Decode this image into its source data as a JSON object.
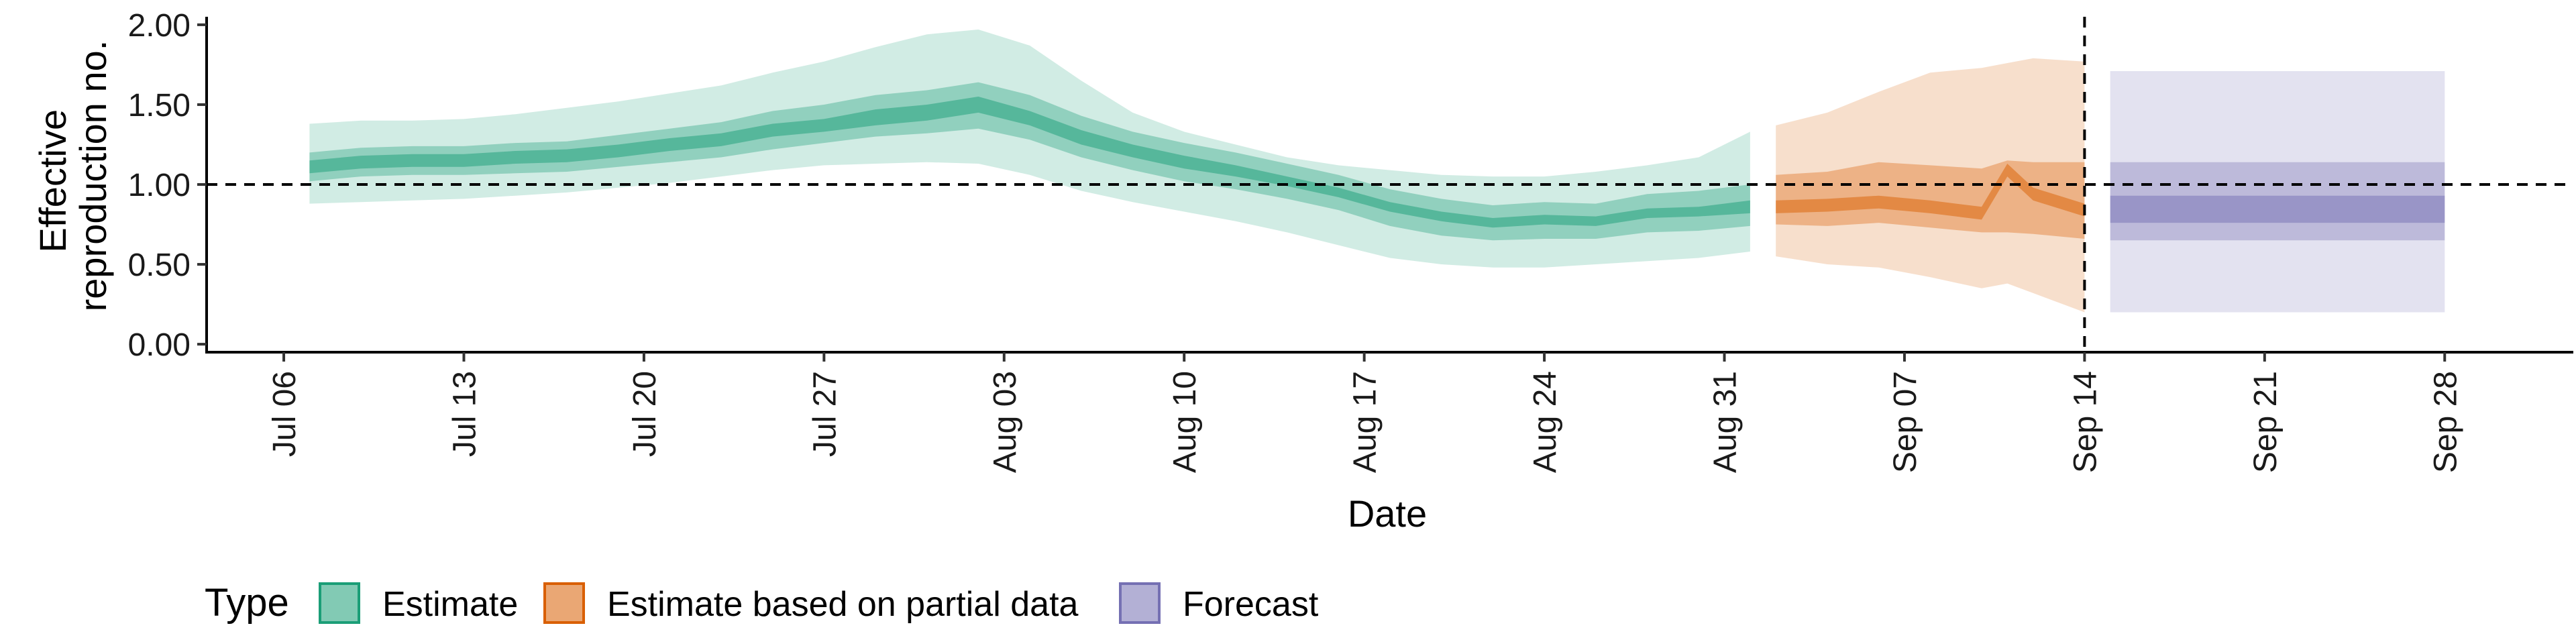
{
  "chart_data": {
    "type": "area",
    "title": "",
    "xlabel": "Date",
    "ylabel": "Effective reproduction no.",
    "ylabel_lines": [
      "Effective",
      "reproduction no."
    ],
    "x_start": "2020-07-07",
    "xlim": [
      "2020-07-03",
      "2020-10-03"
    ],
    "ylim": [
      -0.05,
      2.05
    ],
    "y_ticks": [
      0,
      0.5,
      1,
      1.5,
      2
    ],
    "y_tick_labels": [
      "0.00",
      "0.50",
      "1.00",
      "1.50",
      "2.00"
    ],
    "x_ticks": [
      "2020-07-06",
      "2020-07-13",
      "2020-07-20",
      "2020-07-27",
      "2020-08-03",
      "2020-08-10",
      "2020-08-17",
      "2020-08-24",
      "2020-08-31",
      "2020-09-07",
      "2020-09-14",
      "2020-09-21",
      "2020-09-28"
    ],
    "x_tick_labels": [
      "Jul 06",
      "Jul 13",
      "Jul 20",
      "Jul 27",
      "Aug 03",
      "Aug 10",
      "Aug 17",
      "Aug 24",
      "Aug 31",
      "Sep 07",
      "Sep 14",
      "Sep 21",
      "Sep 28"
    ],
    "hline": 1.0,
    "vline": "2020-09-14",
    "legend": {
      "title": "Type",
      "position": "bottom"
    },
    "series": [
      {
        "name": "Estimate",
        "color": "#1b9e77",
        "x": [
          "2020-07-07",
          "2020-07-09",
          "2020-07-11",
          "2020-07-13",
          "2020-07-15",
          "2020-07-17",
          "2020-07-19",
          "2020-07-21",
          "2020-07-23",
          "2020-07-25",
          "2020-07-27",
          "2020-07-29",
          "2020-07-31",
          "2020-08-02",
          "2020-08-04",
          "2020-08-06",
          "2020-08-08",
          "2020-08-10",
          "2020-08-12",
          "2020-08-14",
          "2020-08-16",
          "2020-08-18",
          "2020-08-20",
          "2020-08-22",
          "2020-08-24",
          "2020-08-26",
          "2020-08-28",
          "2020-08-30",
          "2020-09-01"
        ],
        "median_lo": [
          1.07,
          1.1,
          1.11,
          1.11,
          1.13,
          1.14,
          1.17,
          1.21,
          1.24,
          1.3,
          1.33,
          1.37,
          1.4,
          1.45,
          1.37,
          1.25,
          1.17,
          1.1,
          1.05,
          0.99,
          0.92,
          0.83,
          0.77,
          0.73,
          0.75,
          0.74,
          0.79,
          0.8,
          0.82
        ],
        "median_hi": [
          1.15,
          1.18,
          1.19,
          1.19,
          1.21,
          1.22,
          1.25,
          1.29,
          1.32,
          1.38,
          1.41,
          1.47,
          1.5,
          1.55,
          1.46,
          1.34,
          1.25,
          1.18,
          1.12,
          1.05,
          0.98,
          0.89,
          0.83,
          0.79,
          0.81,
          0.8,
          0.85,
          0.86,
          0.9
        ],
        "inner_lo": [
          1.02,
          1.05,
          1.06,
          1.06,
          1.07,
          1.08,
          1.11,
          1.14,
          1.17,
          1.22,
          1.26,
          1.3,
          1.32,
          1.35,
          1.28,
          1.17,
          1.09,
          1.02,
          0.97,
          0.91,
          0.84,
          0.74,
          0.68,
          0.65,
          0.66,
          0.66,
          0.7,
          0.71,
          0.74
        ],
        "inner_hi": [
          1.2,
          1.23,
          1.24,
          1.24,
          1.26,
          1.27,
          1.31,
          1.35,
          1.39,
          1.46,
          1.5,
          1.56,
          1.59,
          1.64,
          1.56,
          1.43,
          1.33,
          1.26,
          1.2,
          1.13,
          1.06,
          0.97,
          0.91,
          0.87,
          0.89,
          0.88,
          0.94,
          0.96,
          1.0
        ],
        "outer_lo": [
          0.88,
          0.89,
          0.9,
          0.91,
          0.93,
          0.95,
          0.98,
          1.01,
          1.05,
          1.09,
          1.12,
          1.13,
          1.14,
          1.13,
          1.06,
          0.96,
          0.89,
          0.83,
          0.77,
          0.7,
          0.62,
          0.54,
          0.5,
          0.48,
          0.48,
          0.5,
          0.52,
          0.54,
          0.58
        ],
        "outer_hi": [
          1.38,
          1.4,
          1.4,
          1.41,
          1.44,
          1.48,
          1.52,
          1.57,
          1.62,
          1.7,
          1.77,
          1.86,
          1.94,
          1.97,
          1.87,
          1.65,
          1.45,
          1.33,
          1.25,
          1.17,
          1.12,
          1.09,
          1.06,
          1.05,
          1.05,
          1.08,
          1.12,
          1.17,
          1.33
        ]
      },
      {
        "name": "Estimate based on partial data",
        "color": "#d95f02",
        "x": [
          "2020-09-02",
          "2020-09-04",
          "2020-09-06",
          "2020-09-08",
          "2020-09-10",
          "2020-09-11",
          "2020-09-12",
          "2020-09-14"
        ],
        "median_lo": [
          0.82,
          0.83,
          0.85,
          0.82,
          0.78,
          1.05,
          0.9,
          0.8
        ],
        "median_hi": [
          0.9,
          0.91,
          0.93,
          0.9,
          0.86,
          1.13,
          0.98,
          0.88
        ],
        "inner_lo": [
          0.75,
          0.74,
          0.76,
          0.73,
          0.7,
          0.7,
          0.69,
          0.66
        ],
        "inner_hi": [
          1.06,
          1.08,
          1.14,
          1.12,
          1.1,
          1.15,
          1.14,
          1.14
        ],
        "outer_lo": [
          0.55,
          0.5,
          0.48,
          0.42,
          0.35,
          0.38,
          0.32,
          0.2
        ],
        "outer_hi": [
          1.37,
          1.45,
          1.58,
          1.7,
          1.73,
          1.76,
          1.79,
          1.77
        ]
      },
      {
        "name": "Forecast",
        "color": "#7570b3",
        "x": [
          "2020-09-15",
          "2020-09-28"
        ],
        "median_lo": [
          0.76,
          0.76
        ],
        "median_hi": [
          0.93,
          0.93
        ],
        "inner_lo": [
          0.65,
          0.65
        ],
        "inner_hi": [
          1.14,
          1.14
        ],
        "outer_lo": [
          0.2,
          0.2
        ],
        "outer_hi": [
          1.71,
          1.71
        ]
      }
    ]
  }
}
